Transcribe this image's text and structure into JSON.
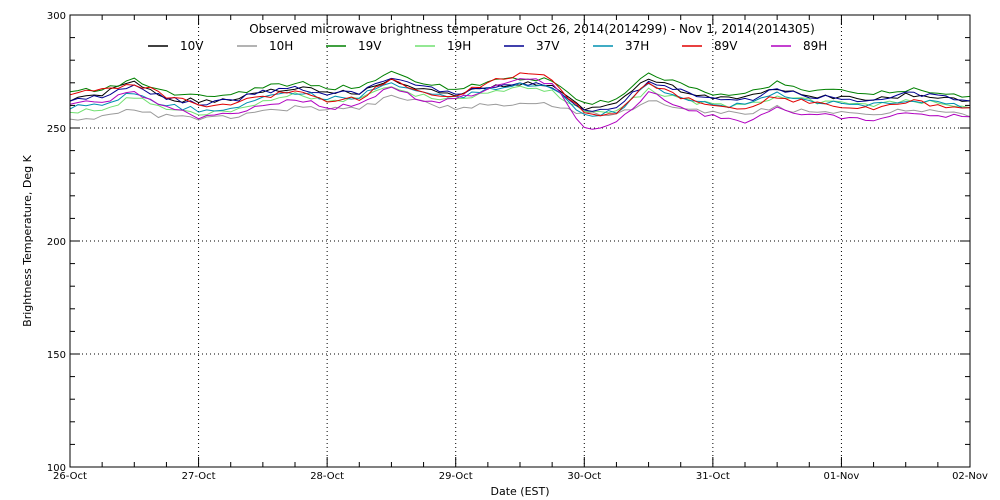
{
  "chart_data": {
    "type": "line",
    "title": "Observed microwave brightness temperature Oct 26, 2014(2014299) - Nov  1, 2014(2014305)",
    "xlabel": "Date (EST)",
    "ylabel": "Brightness Temperature, Deg K",
    "ylim": [
      100,
      300
    ],
    "xlim": [
      0,
      7
    ],
    "y_ticks": [
      "100",
      "150",
      "200",
      "250",
      "300"
    ],
    "x_ticks": [
      "26-Oct",
      "27-Oct",
      "28-Oct",
      "29-Oct",
      "30-Oct",
      "31-Oct",
      "01-Nov",
      "02-Nov"
    ],
    "grid": true,
    "legend_position": "top",
    "x": [
      0,
      0.25,
      0.5,
      0.75,
      1,
      1.25,
      1.5,
      1.75,
      2,
      2.25,
      2.5,
      2.75,
      3,
      3.25,
      3.5,
      3.75,
      4,
      4.25,
      4.5,
      4.75,
      5,
      5.25,
      5.5,
      5.75,
      6,
      6.25,
      6.5,
      6.75,
      7
    ],
    "series": [
      {
        "name": "10V",
        "color": "#000000",
        "values": [
          263,
          265,
          270,
          263,
          262,
          262,
          266,
          268,
          266,
          266,
          272,
          267,
          265,
          268,
          270,
          268,
          259,
          260,
          272,
          267,
          263,
          263,
          267,
          264,
          264,
          262,
          265,
          264,
          262
        ]
      },
      {
        "name": "10H",
        "color": "#9a9a9a",
        "values": [
          253,
          255,
          258,
          255,
          254,
          255,
          257,
          259,
          258,
          259,
          264,
          261,
          259,
          260,
          261,
          260,
          256,
          256,
          262,
          259,
          257,
          256,
          259,
          257,
          257,
          256,
          258,
          257,
          255
        ]
      },
      {
        "name": "19V",
        "color": "#008000",
        "values": [
          266,
          267,
          271,
          266,
          264,
          265,
          268,
          270,
          268,
          268,
          275,
          270,
          267,
          270,
          272,
          271,
          261,
          262,
          274,
          269,
          265,
          265,
          270,
          267,
          266,
          265,
          267,
          266,
          264
        ]
      },
      {
        "name": "19H",
        "color": "#70e070",
        "values": [
          257,
          258,
          264,
          258,
          256,
          257,
          262,
          265,
          262,
          263,
          268,
          264,
          262,
          266,
          268,
          266,
          257,
          258,
          267,
          263,
          260,
          260,
          264,
          262,
          261,
          260,
          262,
          261,
          259
        ]
      },
      {
        "name": "37V",
        "color": "#000090",
        "values": [
          262,
          264,
          269,
          263,
          261,
          262,
          266,
          268,
          265,
          266,
          272,
          268,
          265,
          268,
          270,
          268,
          258,
          259,
          271,
          267,
          263,
          262,
          267,
          264,
          263,
          262,
          265,
          264,
          262
        ]
      },
      {
        "name": "37H",
        "color": "#0090b0",
        "values": [
          259,
          260,
          266,
          260,
          258,
          259,
          264,
          266,
          263,
          264,
          270,
          266,
          263,
          267,
          269,
          268,
          256,
          257,
          269,
          264,
          260,
          260,
          265,
          262,
          261,
          260,
          262,
          261,
          259
        ]
      },
      {
        "name": "89V",
        "color": "#e00000",
        "values": [
          265,
          267,
          270,
          264,
          260,
          261,
          264,
          266,
          262,
          263,
          272,
          265,
          264,
          270,
          274,
          272,
          256,
          256,
          270,
          264,
          260,
          259,
          264,
          261,
          260,
          259,
          262,
          260,
          259
        ]
      },
      {
        "name": "89H",
        "color": "#b000c0",
        "values": [
          260,
          262,
          266,
          259,
          255,
          256,
          260,
          263,
          259,
          260,
          269,
          262,
          262,
          268,
          272,
          270,
          250,
          252,
          266,
          259,
          255,
          253,
          259,
          256,
          255,
          254,
          257,
          256,
          255
        ]
      }
    ]
  }
}
